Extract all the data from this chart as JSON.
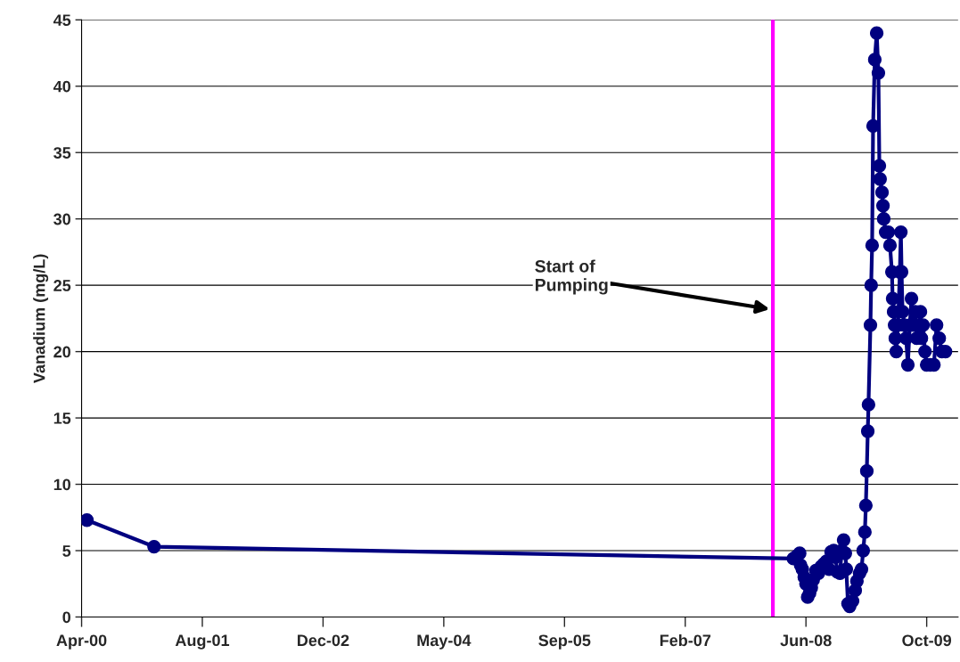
{
  "chart_data": {
    "type": "line",
    "ylabel": "Vanadium (mg/L)",
    "x": [
      "2000-04-23",
      "2001-01-26",
      "2008-04-27",
      "2008-05-12",
      "2008-05-23",
      "2008-05-27",
      "2008-06-03",
      "2008-06-11",
      "2008-06-18",
      "2008-06-25",
      "2008-07-03",
      "2008-07-10",
      "2008-07-18",
      "2008-07-29",
      "2008-08-09",
      "2008-08-20",
      "2008-08-31",
      "2008-09-11",
      "2008-09-22",
      "2008-09-30",
      "2008-10-11",
      "2008-10-18",
      "2008-10-26",
      "2008-11-06",
      "2008-11-13",
      "2008-11-21",
      "2008-11-28",
      "2008-12-02",
      "2008-12-09",
      "2008-12-16",
      "2008-12-28",
      "2009-01-08",
      "2009-01-15",
      "2009-01-26",
      "2009-02-03",
      "2009-02-10",
      "2009-02-17",
      "2009-02-21",
      "2009-02-25",
      "2009-03-01",
      "2009-03-04",
      "2009-03-12",
      "2009-03-15",
      "2009-03-19",
      "2009-03-23",
      "2009-03-30",
      "2009-04-07",
      "2009-04-14",
      "2009-04-18",
      "2009-04-21",
      "2009-04-29",
      "2009-05-03",
      "2009-05-06",
      "2009-05-14",
      "2009-05-25",
      "2009-06-01",
      "2009-06-09",
      "2009-06-12",
      "2009-06-16",
      "2009-06-20",
      "2009-06-23",
      "2009-06-27",
      "2009-07-04",
      "2009-07-12",
      "2009-07-16",
      "2009-07-19",
      "2009-07-23",
      "2009-07-30",
      "2009-08-07",
      "2009-08-14",
      "2009-08-22",
      "2009-08-29",
      "2009-09-05",
      "2009-09-13",
      "2009-09-20",
      "2009-09-28",
      "2009-10-05",
      "2009-10-09",
      "2009-10-16",
      "2009-10-24",
      "2009-10-31",
      "2009-11-15",
      "2009-11-30",
      "2009-12-11",
      "2009-12-22",
      "2010-01-02",
      "2010-01-17"
    ],
    "series": [
      {
        "color": "#000080",
        "values": [
          7.3,
          5.3,
          4.4,
          4.6,
          4.8,
          3.9,
          3.6,
          3.0,
          2.5,
          1.5,
          1.8,
          2.2,
          2.8,
          3.5,
          3.3,
          3.8,
          4.0,
          4.2,
          3.6,
          4.9,
          5.0,
          4.5,
          3.4,
          3.3,
          5.0,
          5.8,
          4.8,
          3.6,
          1.0,
          0.8,
          1.2,
          2.0,
          2.7,
          3.3,
          3.6,
          5.0,
          6.4,
          8.4,
          11,
          14,
          16,
          22,
          25,
          28,
          37,
          42,
          44,
          41,
          34,
          33,
          32,
          31,
          30,
          29,
          29,
          28,
          26,
          24,
          23,
          22,
          21,
          20,
          22,
          26,
          29,
          26,
          23,
          22,
          21,
          19,
          22,
          24,
          22,
          23,
          21,
          22,
          23,
          21,
          22,
          20,
          19,
          19,
          19,
          22,
          21,
          20,
          20
        ]
      }
    ],
    "xlim": [
      "2000-04-01",
      "2010-03-10"
    ],
    "xticks": [
      {
        "value": "2000-04-01",
        "label": "Apr-00"
      },
      {
        "value": "2001-08-14",
        "label": "Aug-01"
      },
      {
        "value": "2002-12-27",
        "label": "Dec-02"
      },
      {
        "value": "2004-05-10",
        "label": "May-04"
      },
      {
        "value": "2005-09-22",
        "label": "Sep-05"
      },
      {
        "value": "2007-02-04",
        "label": "Feb-07"
      },
      {
        "value": "2008-06-18",
        "label": "Jun-08"
      },
      {
        "value": "2009-10-31",
        "label": "Oct-09"
      }
    ],
    "ylim": [
      0,
      45
    ],
    "yticks": [
      0,
      5,
      10,
      15,
      20,
      25,
      30,
      35,
      40,
      45
    ],
    "grid": "y",
    "legend": false,
    "marker": "circle",
    "line_style": "solid",
    "ref_lines": [
      {
        "axis": "x",
        "value": "2008-02-02",
        "color": "#ff00ff",
        "line_style": "solid"
      }
    ],
    "annotations": [
      {
        "text": "Start of\nPumping",
        "x": "2008-01-20",
        "y": 23.2
      }
    ]
  }
}
